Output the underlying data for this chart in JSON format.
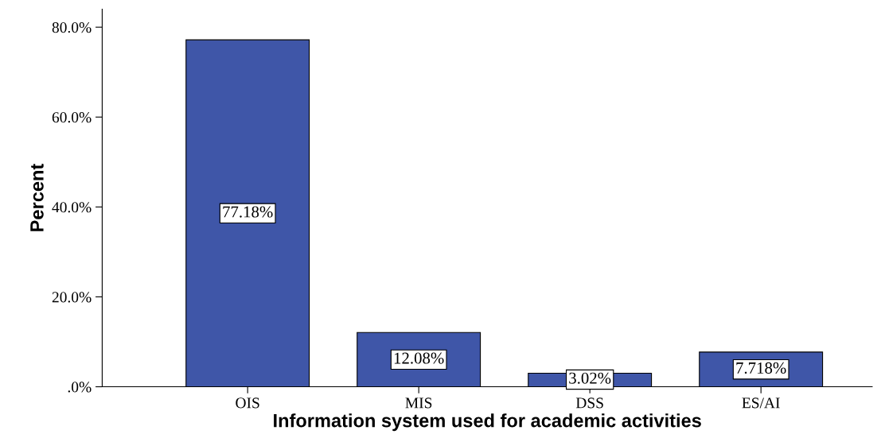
{
  "chart_data": {
    "type": "bar",
    "xlabel": "Information system used for academic activities",
    "ylabel": "Percent",
    "categories": [
      "OIS",
      "MIS",
      "DSS",
      "ES/AI"
    ],
    "values": [
      77.18,
      12.08,
      3.02,
      7.718
    ],
    "value_labels": [
      "77.18%",
      "12.08%",
      "3.02%",
      "7.718%"
    ],
    "color": "#3f56a8",
    "ylim": [
      0,
      84
    ],
    "yticks": [
      {
        "value": 0,
        "label": ".0%"
      },
      {
        "value": 20,
        "label": "20.0%"
      },
      {
        "value": 40,
        "label": "40.0%"
      },
      {
        "value": 60,
        "label": "60.0%"
      },
      {
        "value": 80,
        "label": "80.0%"
      }
    ],
    "grid": false,
    "legend": false
  }
}
